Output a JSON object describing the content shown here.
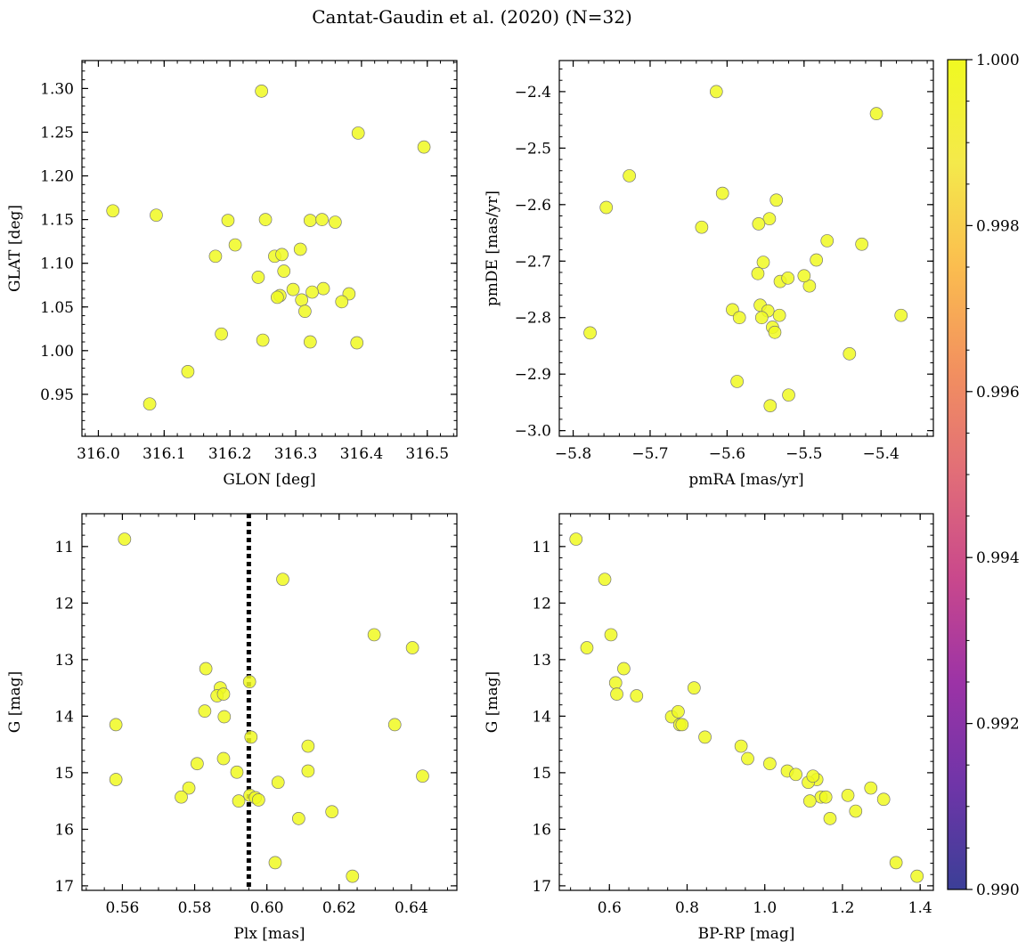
{
  "figure": {
    "title": "Cantat-Gaudin et al. (2020) (N=32)"
  },
  "colors": {
    "marker_fill": "#f0f921",
    "marker_edge": "#777777",
    "dotted_line": "#000000",
    "colormap_stops": [
      "#3b3f97",
      "#6f35a8",
      "#9c33a6",
      "#c9488c",
      "#e16d78",
      "#f2905f",
      "#fbbd4f",
      "#f4e94b",
      "#f0f921"
    ]
  },
  "chart_data": [
    {
      "id": "sky",
      "type": "scatter",
      "xlabel": "GLON [deg]",
      "ylabel": "GLAT [deg]",
      "xlim": [
        315.975,
        316.545
      ],
      "ylim": [
        0.902,
        1.332
      ],
      "xticks": [
        316.0,
        316.1,
        316.2,
        316.3,
        316.4,
        316.5
      ],
      "xtick_labels": [
        "316.0",
        "316.1",
        "316.2",
        "316.3",
        "316.4",
        "316.5"
      ],
      "yticks": [
        0.95,
        1.0,
        1.05,
        1.1,
        1.15,
        1.2,
        1.25,
        1.3
      ],
      "ytick_labels": [
        "0.95",
        "1.00",
        "1.05",
        "1.10",
        "1.15",
        "1.20",
        "1.25",
        "1.30"
      ],
      "x": [
        316.248,
        316.395,
        316.495,
        316.022,
        316.088,
        316.197,
        316.254,
        316.322,
        316.34,
        316.36,
        316.208,
        316.178,
        316.268,
        316.279,
        316.307,
        316.282,
        316.243,
        316.296,
        316.342,
        316.325,
        316.381,
        316.276,
        316.272,
        316.309,
        316.37,
        316.314,
        316.187,
        316.25,
        316.322,
        316.393,
        316.136,
        316.078
      ],
      "y": [
        1.297,
        1.249,
        1.233,
        1.16,
        1.155,
        1.149,
        1.15,
        1.149,
        1.15,
        1.147,
        1.121,
        1.108,
        1.108,
        1.11,
        1.116,
        1.091,
        1.084,
        1.07,
        1.071,
        1.067,
        1.065,
        1.063,
        1.061,
        1.058,
        1.056,
        1.045,
        1.019,
        1.012,
        1.01,
        1.009,
        0.976,
        0.939
      ],
      "memb_prob": [
        1,
        1,
        1,
        1,
        1,
        1,
        1,
        1,
        1,
        1,
        1,
        1,
        1,
        1,
        1,
        1,
        1,
        1,
        1,
        1,
        1,
        1,
        1,
        1,
        1,
        1,
        1,
        1,
        1,
        1,
        1,
        1
      ]
    },
    {
      "id": "pm",
      "type": "scatter",
      "xlabel": "pmRA [mas/yr]",
      "ylabel": "pmDE [mas/yr]",
      "xlim": [
        -5.818,
        -5.332
      ],
      "ylim": [
        -3.01,
        -2.345
      ],
      "xticks": [
        -5.8,
        -5.7,
        -5.6,
        -5.5,
        -5.4
      ],
      "xtick_labels": [
        "−5.8",
        "−5.7",
        "−5.6",
        "−5.5",
        "−5.4"
      ],
      "yticks": [
        -3.0,
        -2.9,
        -2.8,
        -2.7,
        -2.6,
        -2.5,
        -2.4
      ],
      "ytick_labels": [
        "−3.0",
        "−2.9",
        "−2.8",
        "−2.7",
        "−2.6",
        "−2.5",
        "−2.4"
      ],
      "x": [
        -5.614,
        -5.406,
        -5.727,
        -5.757,
        -5.606,
        -5.536,
        -5.545,
        -5.633,
        -5.559,
        -5.47,
        -5.425,
        -5.484,
        -5.553,
        -5.493,
        -5.531,
        -5.521,
        -5.5,
        -5.557,
        -5.593,
        -5.547,
        -5.532,
        -5.555,
        -5.584,
        -5.541,
        -5.538,
        -5.778,
        -5.441,
        -5.587,
        -5.52,
        -5.544,
        -5.56,
        -5.374
      ],
      "y": [
        -2.4,
        -2.439,
        -2.549,
        -2.605,
        -2.58,
        -2.592,
        -2.625,
        -2.64,
        -2.634,
        -2.664,
        -2.67,
        -2.698,
        -2.702,
        -2.744,
        -2.736,
        -2.73,
        -2.726,
        -2.778,
        -2.786,
        -2.788,
        -2.796,
        -2.8,
        -2.8,
        -2.817,
        -2.826,
        -2.827,
        -2.864,
        -2.913,
        -2.937,
        -2.956,
        -2.722,
        -2.796
      ],
      "memb_prob": [
        1,
        1,
        1,
        1,
        1,
        1,
        1,
        1,
        1,
        1,
        1,
        1,
        1,
        1,
        1,
        1,
        1,
        1,
        1,
        1,
        1,
        1,
        1,
        1,
        1,
        1,
        1,
        1,
        1,
        1,
        1,
        1
      ]
    },
    {
      "id": "plx",
      "type": "scatter",
      "xlabel": "Plx [mas]",
      "ylabel": "G [mag]",
      "xlim": [
        0.5488,
        0.6526
      ],
      "ylim": [
        17.08,
        10.42
      ],
      "y_inverted": true,
      "xticks": [
        0.56,
        0.58,
        0.6,
        0.62,
        0.64
      ],
      "xtick_labels": [
        "0.56",
        "0.58",
        "0.60",
        "0.62",
        "0.64"
      ],
      "yticks": [
        11,
        12,
        13,
        14,
        15,
        16,
        17
      ],
      "ytick_labels": [
        "11",
        "12",
        "13",
        "14",
        "15",
        "16",
        "17"
      ],
      "vline_x": 0.595,
      "x": [
        0.5606,
        0.6044,
        0.6297,
        0.6403,
        0.5831,
        0.5952,
        0.5871,
        0.5862,
        0.588,
        0.5828,
        0.5882,
        0.5582,
        0.6354,
        0.5956,
        0.6114,
        0.5807,
        0.588,
        0.5917,
        0.6114,
        0.5582,
        0.6431,
        0.6031,
        0.5784,
        0.5763,
        0.5953,
        0.5968,
        0.5977,
        0.5922,
        0.618,
        0.6088,
        0.6023,
        0.6237
      ],
      "y": [
        10.87,
        11.58,
        12.56,
        12.79,
        13.16,
        13.39,
        13.5,
        13.64,
        13.61,
        13.91,
        14.01,
        14.15,
        14.15,
        14.37,
        14.53,
        14.84,
        14.75,
        14.99,
        14.97,
        15.12,
        15.06,
        15.17,
        15.27,
        15.43,
        15.4,
        15.44,
        15.48,
        15.5,
        15.69,
        15.81,
        16.59,
        16.83
      ],
      "memb_prob": [
        1,
        1,
        1,
        1,
        1,
        1,
        1,
        1,
        1,
        1,
        1,
        1,
        1,
        1,
        1,
        1,
        1,
        1,
        1,
        1,
        1,
        1,
        1,
        1,
        1,
        1,
        1,
        1,
        1,
        1,
        1,
        1
      ]
    },
    {
      "id": "cmd",
      "type": "scatter",
      "xlabel": "BP-RP [mag]",
      "ylabel": "G [mag]",
      "xlim": [
        0.471,
        1.434
      ],
      "ylim": [
        17.08,
        10.42
      ],
      "y_inverted": true,
      "xticks": [
        0.6,
        0.8,
        1.0,
        1.2,
        1.4
      ],
      "xtick_labels": [
        "0.6",
        "0.8",
        "1.0",
        "1.2",
        "1.4"
      ],
      "yticks": [
        11,
        12,
        13,
        14,
        15,
        16,
        17
      ],
      "ytick_labels": [
        "11",
        "12",
        "13",
        "14",
        "15",
        "16",
        "17"
      ],
      "x": [
        0.514,
        0.588,
        0.604,
        0.542,
        0.637,
        0.616,
        0.619,
        0.67,
        0.818,
        0.76,
        0.777,
        0.781,
        0.787,
        0.846,
        0.939,
        0.956,
        1.013,
        1.058,
        1.08,
        1.134,
        1.112,
        1.273,
        1.214,
        1.145,
        1.157,
        1.306,
        1.116,
        1.234,
        1.168,
        1.338,
        1.392,
        1.124
      ],
      "y": [
        10.87,
        11.58,
        12.56,
        12.79,
        13.16,
        13.41,
        13.61,
        13.64,
        13.5,
        14.01,
        13.92,
        14.15,
        14.15,
        14.37,
        14.53,
        14.75,
        14.84,
        14.97,
        15.03,
        15.12,
        15.17,
        15.27,
        15.4,
        15.43,
        15.43,
        15.47,
        15.5,
        15.68,
        15.81,
        16.59,
        16.83,
        15.06
      ],
      "memb_prob": [
        1,
        1,
        1,
        1,
        1,
        1,
        1,
        1,
        1,
        1,
        1,
        1,
        1,
        1,
        1,
        1,
        1,
        1,
        1,
        1,
        1,
        1,
        1,
        1,
        1,
        1,
        1,
        1,
        1,
        1,
        1,
        1
      ]
    },
    {
      "id": "colorbar",
      "type": "heatmap",
      "vlim": [
        0.99,
        1.0
      ],
      "ticks": [
        0.99,
        0.992,
        0.994,
        0.996,
        0.998,
        1.0
      ],
      "tick_labels": [
        "0.990",
        "0.992",
        "0.994",
        "0.996",
        "0.998",
        "1.000"
      ]
    }
  ]
}
